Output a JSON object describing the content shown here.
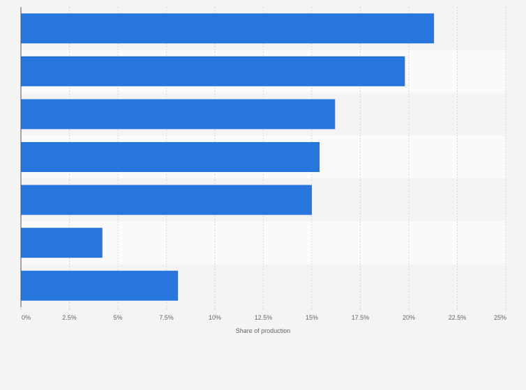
{
  "chart_data": {
    "type": "bar",
    "orientation": "horizontal",
    "categories": [
      "",
      "",
      "",
      "",
      "",
      "",
      ""
    ],
    "values": [
      21.3,
      19.8,
      16.2,
      15.4,
      15.0,
      4.2,
      8.1
    ],
    "title": "",
    "xlabel": "Share of production",
    "ylabel": "",
    "xlim": [
      0,
      25
    ],
    "xticks": [
      0,
      2.5,
      5,
      7.5,
      10,
      12.5,
      15,
      17.5,
      20,
      22.5,
      25
    ],
    "xtick_labels": [
      "0%",
      "2.5%",
      "5%",
      "7.5%",
      "10%",
      "12.5%",
      "15%",
      "17.5%",
      "20%",
      "22.5%",
      "25%"
    ],
    "grid": "vertical dashed",
    "legend": "none"
  },
  "colors": {
    "bar": "#2776dd",
    "background": "#f4f4f4",
    "band_light": "#fafafa",
    "band_dark": "#f4f4f4",
    "grid": "#d8d8d8",
    "axis": "#555555",
    "text": "#666666"
  }
}
